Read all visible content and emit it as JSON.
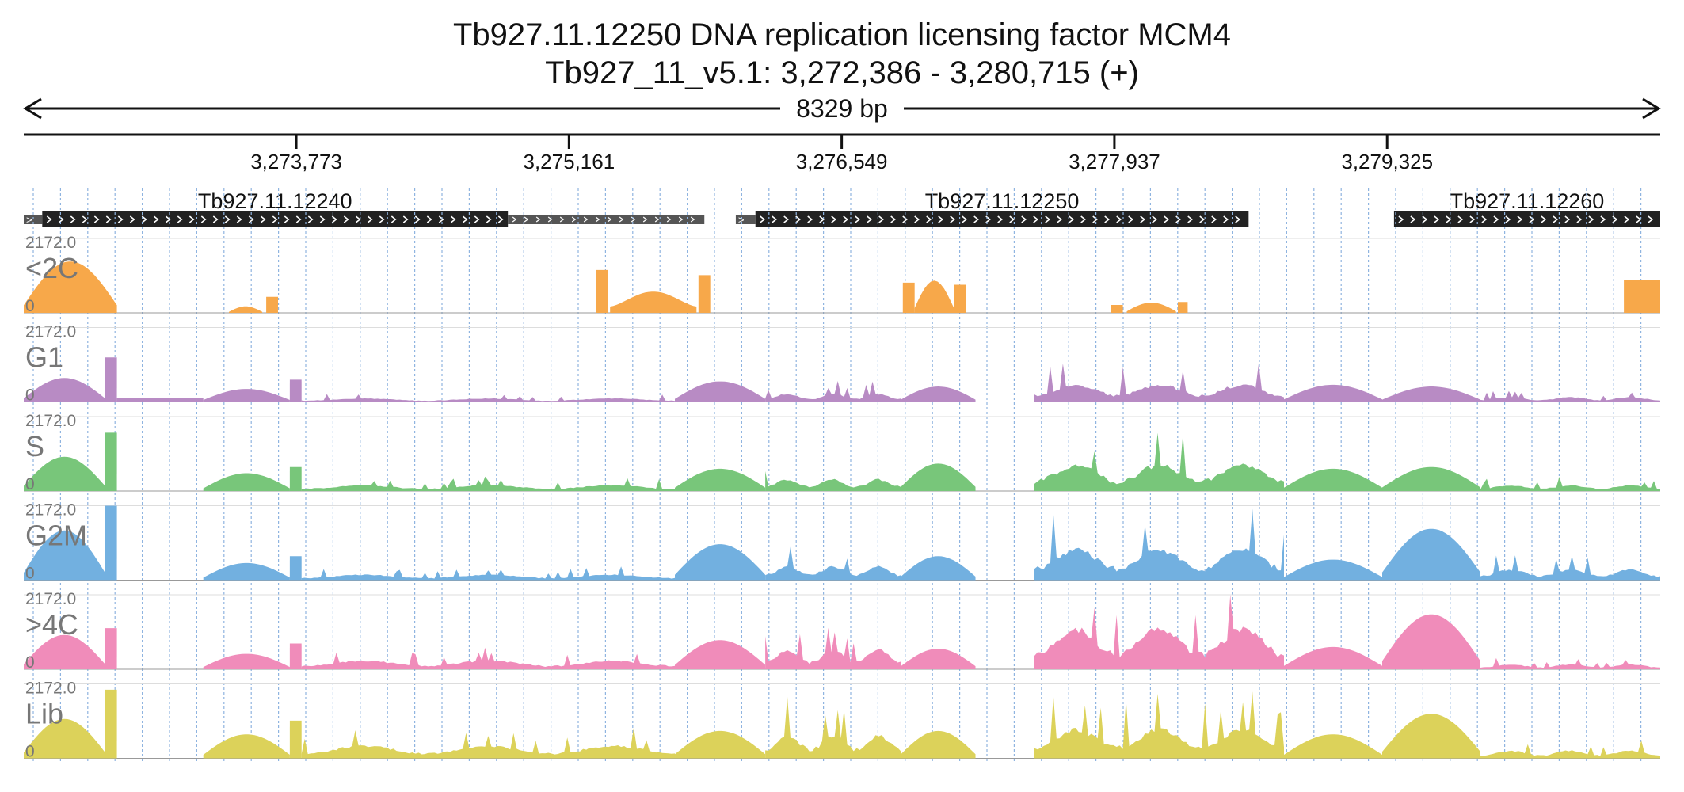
{
  "title": {
    "gene_line": "Tb927.11.12250  DNA replication licensing factor MCM4",
    "locus_line": "Tb927_11_v5.1: 3,272,386 - 3,280,715 (+)"
  },
  "region": {
    "chromosome": "Tb927_11_v5.1",
    "start": 3272386,
    "end": 3280715,
    "strand": "+",
    "span_label": "8329 bp"
  },
  "ruler": {
    "ticks": [
      {
        "position": 3273773,
        "label": "3,273,773"
      },
      {
        "position": 3275161,
        "label": "3,275,161"
      },
      {
        "position": 3276549,
        "label": "3,276,549"
      },
      {
        "position": 3277937,
        "label": "3,277,937"
      },
      {
        "position": 3279325,
        "label": "3,279,325"
      }
    ]
  },
  "genes": [
    {
      "name": "Tb927.11.12240",
      "strand": "+",
      "utr5": [
        3272386,
        3272480
      ],
      "cds": [
        3272480,
        3274850
      ],
      "utr3": [
        3274850,
        3275850
      ]
    },
    {
      "name": "Tb927.11.12250",
      "strand": "+",
      "utr5": [
        3276010,
        3276110
      ],
      "cds": [
        3276110,
        3278620
      ],
      "utr3": null
    },
    {
      "name": "Tb927.11.12260",
      "strand": "+",
      "utr5": null,
      "cds": [
        3279360,
        3281220
      ],
      "utr3": null
    }
  ],
  "colors": {
    "cds": "#222222",
    "utr": "#555555",
    "gridline": "#8fb4e0",
    "baseline": "#999999",
    "track_label": "#777777"
  },
  "chart_data": {
    "type": "area",
    "title": "Tb927.11.12250  DNA replication licensing factor MCM4",
    "x_range": [
      3272386,
      3280715
    ],
    "ylim": [
      0,
      2172.0
    ],
    "y_max_label": "2172.0",
    "y_min_label": "0",
    "grid": true,
    "series": [
      {
        "name": "<2C",
        "color": "#f7a84a",
        "segments": [
          {
            "x": [
              3272386,
              3272860
            ],
            "peak": 1500,
            "shape": "dome"
          },
          {
            "x": [
              3273430,
              3273600
            ],
            "peak": 190,
            "shape": "dome"
          },
          {
            "x": [
              3273620,
              3273680
            ],
            "peak": 470,
            "shape": "flat"
          },
          {
            "x": [
              3275300,
              3275360
            ],
            "peak": 1250,
            "shape": "flat"
          },
          {
            "x": [
              3275370,
              3275810
            ],
            "peak": 620,
            "shape": "valley"
          },
          {
            "x": [
              3275820,
              3275880
            ],
            "peak": 1100,
            "shape": "flat"
          },
          {
            "x": [
              3276860,
              3276920
            ],
            "peak": 880,
            "shape": "flat"
          },
          {
            "x": [
              3276920,
              3277120
            ],
            "peak": 940,
            "shape": "dome"
          },
          {
            "x": [
              3277120,
              3277180
            ],
            "peak": 820,
            "shape": "flat"
          },
          {
            "x": [
              3277920,
              3277980
            ],
            "peak": 230,
            "shape": "flat"
          },
          {
            "x": [
              3278000,
              3278250
            ],
            "peak": 300,
            "shape": "dome"
          },
          {
            "x": [
              3278260,
              3278310
            ],
            "peak": 320,
            "shape": "flat"
          },
          {
            "x": [
              3280530,
              3280715
            ],
            "peak": 950,
            "shape": "flat"
          }
        ]
      },
      {
        "name": "G1",
        "color": "#b88bc4",
        "segments": [
          {
            "x": [
              3272386,
              3272800
            ],
            "peak": 700,
            "shape": "dome"
          },
          {
            "x": [
              3272800,
              3272860
            ],
            "peak": 1300,
            "shape": "flat"
          },
          {
            "x": [
              3272860,
              3273300
            ],
            "peak": 120,
            "shape": "flat"
          },
          {
            "x": [
              3273300,
              3273740
            ],
            "peak": 380,
            "shape": "dome"
          },
          {
            "x": [
              3273740,
              3273800
            ],
            "peak": 650,
            "shape": "flat"
          },
          {
            "x": [
              3273800,
              3275700
            ],
            "peak": 180,
            "shape": "jagged"
          },
          {
            "x": [
              3275700,
              3276160
            ],
            "peak": 600,
            "shape": "dome"
          },
          {
            "x": [
              3276160,
              3276850
            ],
            "peak": 420,
            "shape": "jagged"
          },
          {
            "x": [
              3276850,
              3277230
            ],
            "peak": 450,
            "shape": "dome"
          },
          {
            "x": [
              3277530,
              3278800
            ],
            "peak": 900,
            "shape": "jagged"
          },
          {
            "x": [
              3278800,
              3279300
            ],
            "peak": 500,
            "shape": "dome"
          },
          {
            "x": [
              3279300,
              3279800
            ],
            "peak": 450,
            "shape": "dome"
          },
          {
            "x": [
              3279800,
              3280715
            ],
            "peak": 250,
            "shape": "jagged"
          }
        ]
      },
      {
        "name": "S",
        "color": "#78c67a",
        "segments": [
          {
            "x": [
              3272386,
              3272800
            ],
            "peak": 1000,
            "shape": "dome"
          },
          {
            "x": [
              3272800,
              3272860
            ],
            "peak": 1700,
            "shape": "flat"
          },
          {
            "x": [
              3273300,
              3273740
            ],
            "peak": 520,
            "shape": "dome"
          },
          {
            "x": [
              3273740,
              3273800
            ],
            "peak": 700,
            "shape": "flat"
          },
          {
            "x": [
              3273800,
              3275700
            ],
            "peak": 300,
            "shape": "jagged"
          },
          {
            "x": [
              3275700,
              3276160
            ],
            "peak": 650,
            "shape": "dome"
          },
          {
            "x": [
              3276160,
              3276850
            ],
            "peak": 600,
            "shape": "jagged"
          },
          {
            "x": [
              3276850,
              3277230
            ],
            "peak": 800,
            "shape": "dome"
          },
          {
            "x": [
              3277530,
              3278800
            ],
            "peak": 1350,
            "shape": "jagged"
          },
          {
            "x": [
              3278800,
              3279300
            ],
            "peak": 650,
            "shape": "dome"
          },
          {
            "x": [
              3279300,
              3279800
            ],
            "peak": 700,
            "shape": "dome"
          },
          {
            "x": [
              3279800,
              3280715
            ],
            "peak": 300,
            "shape": "jagged"
          }
        ]
      },
      {
        "name": "G2M",
        "color": "#72b0e0",
        "segments": [
          {
            "x": [
              3272386,
              3272800
            ],
            "peak": 1450,
            "shape": "dome"
          },
          {
            "x": [
              3272800,
              3272860
            ],
            "peak": 2172,
            "shape": "flat"
          },
          {
            "x": [
              3273300,
              3273740
            ],
            "peak": 500,
            "shape": "dome"
          },
          {
            "x": [
              3273740,
              3273800
            ],
            "peak": 700,
            "shape": "flat"
          },
          {
            "x": [
              3273800,
              3275700
            ],
            "peak": 280,
            "shape": "jagged"
          },
          {
            "x": [
              3275700,
              3276160
            ],
            "peak": 1050,
            "shape": "dome"
          },
          {
            "x": [
              3276160,
              3276850
            ],
            "peak": 700,
            "shape": "jagged"
          },
          {
            "x": [
              3276850,
              3277230
            ],
            "peak": 700,
            "shape": "dome"
          },
          {
            "x": [
              3277530,
              3278800
            ],
            "peak": 1600,
            "shape": "jagged"
          },
          {
            "x": [
              3278800,
              3279300
            ],
            "peak": 600,
            "shape": "dome"
          },
          {
            "x": [
              3279300,
              3279800
            ],
            "peak": 1500,
            "shape": "dome"
          },
          {
            "x": [
              3279800,
              3280715
            ],
            "peak": 550,
            "shape": "jagged"
          }
        ]
      },
      {
        "name": ">4C",
        "color": "#f08cba",
        "segments": [
          {
            "x": [
              3272386,
              3272800
            ],
            "peak": 1000,
            "shape": "dome"
          },
          {
            "x": [
              3272800,
              3272860
            ],
            "peak": 1200,
            "shape": "flat"
          },
          {
            "x": [
              3273300,
              3273740
            ],
            "peak": 450,
            "shape": "dome"
          },
          {
            "x": [
              3273740,
              3273800
            ],
            "peak": 750,
            "shape": "flat"
          },
          {
            "x": [
              3273800,
              3275700
            ],
            "peak": 450,
            "shape": "jagged"
          },
          {
            "x": [
              3275700,
              3276160
            ],
            "peak": 850,
            "shape": "dome"
          },
          {
            "x": [
              3276160,
              3276850
            ],
            "peak": 1000,
            "shape": "jagged"
          },
          {
            "x": [
              3276850,
              3277230
            ],
            "peak": 600,
            "shape": "dome"
          },
          {
            "x": [
              3277530,
              3278800
            ],
            "peak": 2100,
            "shape": "jagged"
          },
          {
            "x": [
              3278800,
              3279300
            ],
            "peak": 650,
            "shape": "dome"
          },
          {
            "x": [
              3279300,
              3279800
            ],
            "peak": 1600,
            "shape": "dome"
          },
          {
            "x": [
              3279800,
              3280715
            ],
            "peak": 250,
            "shape": "jagged"
          }
        ]
      },
      {
        "name": "Lib",
        "color": "#dcd25a",
        "segments": [
          {
            "x": [
              3272386,
              3272800
            ],
            "peak": 1150,
            "shape": "dome"
          },
          {
            "x": [
              3272800,
              3272860
            ],
            "peak": 2000,
            "shape": "flat"
          },
          {
            "x": [
              3273300,
              3273740
            ],
            "peak": 700,
            "shape": "dome"
          },
          {
            "x": [
              3273740,
              3273800
            ],
            "peak": 1100,
            "shape": "flat"
          },
          {
            "x": [
              3273800,
              3275700
            ],
            "peak": 650,
            "shape": "jagged"
          },
          {
            "x": [
              3275700,
              3276160
            ],
            "peak": 800,
            "shape": "dome"
          },
          {
            "x": [
              3276160,
              3276850
            ],
            "peak": 1200,
            "shape": "jagged"
          },
          {
            "x": [
              3276850,
              3277230
            ],
            "peak": 800,
            "shape": "dome"
          },
          {
            "x": [
              3277530,
              3278800
            ],
            "peak": 1500,
            "shape": "jagged"
          },
          {
            "x": [
              3278800,
              3279300
            ],
            "peak": 700,
            "shape": "dome"
          },
          {
            "x": [
              3279300,
              3279800
            ],
            "peak": 1300,
            "shape": "dome"
          },
          {
            "x": [
              3279800,
              3280715
            ],
            "peak": 400,
            "shape": "jagged"
          }
        ]
      }
    ]
  }
}
